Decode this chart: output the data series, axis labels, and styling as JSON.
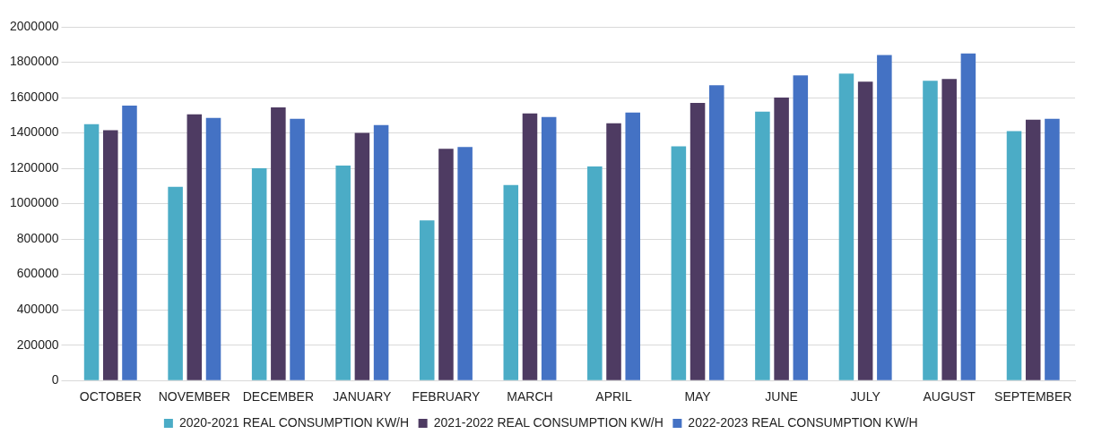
{
  "chart_data": {
    "type": "bar",
    "categories": [
      "OCTOBER",
      "NOVEMBER",
      "DECEMBER",
      "JANUARY",
      "FEBRUARY",
      "MARCH",
      "APRIL",
      "MAY",
      "JUNE",
      "JULY",
      "AUGUST",
      "SEPTEMBER"
    ],
    "series": [
      {
        "name": "2020-2021 REAL CONSUMPTION KW/H",
        "color": "#4bacc6",
        "values": [
          1450000,
          1095000,
          1200000,
          1215000,
          905000,
          1105000,
          1210000,
          1325000,
          1520000,
          1735000,
          1695000,
          1410000
        ]
      },
      {
        "name": "2021-2022 REAL CONSUMPTION KW/H",
        "color": "#4e3b62",
        "values": [
          1415000,
          1505000,
          1545000,
          1400000,
          1310000,
          1510000,
          1455000,
          1570000,
          1600000,
          1690000,
          1705000,
          1475000
        ]
      },
      {
        "name": "2022-2023 REAL CONSUMPTION KW/H",
        "color": "#4472c4",
        "values": [
          1555000,
          1485000,
          1480000,
          1445000,
          1320000,
          1490000,
          1515000,
          1670000,
          1725000,
          1840000,
          1850000,
          1480000
        ]
      }
    ],
    "ylim": [
      0,
      2000000
    ],
    "yticks": [
      0,
      200000,
      400000,
      600000,
      800000,
      1000000,
      1200000,
      1400000,
      1600000,
      1800000,
      2000000
    ],
    "grid": "y",
    "legend": "bottom"
  }
}
